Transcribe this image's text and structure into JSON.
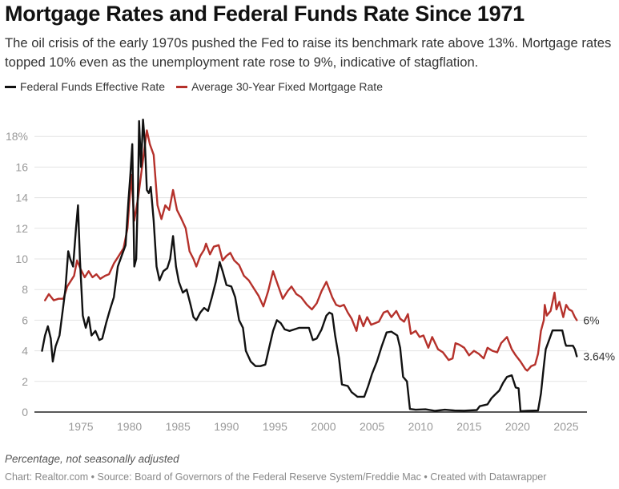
{
  "header": {
    "title": "Mortgage Rates and Federal Funds Rate Since 1971",
    "subtitle": "The oil crisis of the early 1970s pushed the Fed to raise its benchmark rate above 13%. Mortgage rates topped 10% even as the unemployment rate rose to 9%, indicative of stagflation."
  },
  "legend": [
    {
      "label": "Federal Funds Effective Rate",
      "color": "#111111"
    },
    {
      "label": "Average 30-Year Fixed Mortgage Rate",
      "color": "#b5312b"
    }
  ],
  "footer": {
    "notes": "Percentage, not seasonally adjusted",
    "byline": "Chart: Realtor.com • Source: Board of Governors of the Federal Reserve System/Freddie Mac • Created with Datawrapper"
  },
  "chart_data": {
    "type": "line",
    "title": "Mortgage Rates and Federal Funds Rate Since 1971",
    "xlabel": "",
    "ylabel": "Percentage",
    "xlim": [
      1971,
      2026.3
    ],
    "ylim": [
      0,
      19
    ],
    "grid": true,
    "legend_position": "top-left",
    "y_ticks": [
      0,
      2,
      4,
      6,
      8,
      10,
      12,
      14,
      16,
      18
    ],
    "y_tick_labels": [
      "0",
      "2",
      "4",
      "6",
      "8",
      "10",
      "12",
      "14",
      "16",
      "18%"
    ],
    "x_ticks": [
      1975,
      1980,
      1985,
      1990,
      1995,
      2000,
      2005,
      2010,
      2015,
      2020,
      2025
    ],
    "x_tick_labels": [
      "1975",
      "1980",
      "1985",
      "1990",
      "1995",
      "2000",
      "2005",
      "2010",
      "2015",
      "2020",
      "2025"
    ],
    "series": [
      {
        "name": "Federal Funds Effective Rate",
        "color": "#111111",
        "end_label": "3.64%",
        "points": [
          [
            1971.0,
            4.0
          ],
          [
            1971.3,
            5.0
          ],
          [
            1971.6,
            5.6
          ],
          [
            1971.9,
            4.8
          ],
          [
            1972.1,
            3.3
          ],
          [
            1972.4,
            4.3
          ],
          [
            1972.8,
            5.0
          ],
          [
            1973.1,
            6.5
          ],
          [
            1973.4,
            8.0
          ],
          [
            1973.7,
            10.5
          ],
          [
            1973.9,
            10.0
          ],
          [
            1974.2,
            9.5
          ],
          [
            1974.5,
            12.0
          ],
          [
            1974.7,
            13.5
          ],
          [
            1974.9,
            10.0
          ],
          [
            1975.2,
            6.3
          ],
          [
            1975.5,
            5.5
          ],
          [
            1975.8,
            6.2
          ],
          [
            1976.1,
            5.0
          ],
          [
            1976.5,
            5.3
          ],
          [
            1976.9,
            4.7
          ],
          [
            1977.2,
            4.8
          ],
          [
            1977.6,
            5.8
          ],
          [
            1978.0,
            6.7
          ],
          [
            1978.4,
            7.5
          ],
          [
            1978.8,
            9.5
          ],
          [
            1979.2,
            10.2
          ],
          [
            1979.6,
            10.9
          ],
          [
            1979.9,
            13.8
          ],
          [
            1980.1,
            15.5
          ],
          [
            1980.3,
            17.5
          ],
          [
            1980.5,
            9.5
          ],
          [
            1980.7,
            10.0
          ],
          [
            1980.9,
            15.0
          ],
          [
            1981.0,
            19.0
          ],
          [
            1981.2,
            16.0
          ],
          [
            1981.4,
            19.1
          ],
          [
            1981.6,
            17.5
          ],
          [
            1981.8,
            14.5
          ],
          [
            1982.0,
            14.3
          ],
          [
            1982.2,
            14.7
          ],
          [
            1982.5,
            12.5
          ],
          [
            1982.8,
            9.5
          ],
          [
            1983.1,
            8.6
          ],
          [
            1983.5,
            9.2
          ],
          [
            1983.9,
            9.4
          ],
          [
            1984.2,
            10.0
          ],
          [
            1984.5,
            11.5
          ],
          [
            1984.8,
            9.5
          ],
          [
            1985.1,
            8.5
          ],
          [
            1985.5,
            7.8
          ],
          [
            1985.9,
            8.0
          ],
          [
            1986.3,
            7.0
          ],
          [
            1986.6,
            6.2
          ],
          [
            1986.9,
            6.0
          ],
          [
            1987.3,
            6.5
          ],
          [
            1987.7,
            6.8
          ],
          [
            1988.1,
            6.6
          ],
          [
            1988.5,
            7.5
          ],
          [
            1988.9,
            8.5
          ],
          [
            1989.3,
            9.8
          ],
          [
            1989.6,
            9.2
          ],
          [
            1990.0,
            8.3
          ],
          [
            1990.5,
            8.2
          ],
          [
            1990.9,
            7.5
          ],
          [
            1991.3,
            6.0
          ],
          [
            1991.7,
            5.5
          ],
          [
            1992.0,
            4.0
          ],
          [
            1992.5,
            3.3
          ],
          [
            1993.0,
            3.0
          ],
          [
            1993.5,
            3.0
          ],
          [
            1994.0,
            3.1
          ],
          [
            1994.4,
            4.2
          ],
          [
            1994.8,
            5.3
          ],
          [
            1995.2,
            6.0
          ],
          [
            1995.6,
            5.8
          ],
          [
            1996.0,
            5.4
          ],
          [
            1996.5,
            5.3
          ],
          [
            1997.0,
            5.4
          ],
          [
            1997.5,
            5.5
          ],
          [
            1998.0,
            5.5
          ],
          [
            1998.5,
            5.5
          ],
          [
            1998.9,
            4.7
          ],
          [
            1999.3,
            4.8
          ],
          [
            1999.8,
            5.4
          ],
          [
            2000.3,
            6.3
          ],
          [
            2000.6,
            6.5
          ],
          [
            2000.9,
            6.4
          ],
          [
            2001.2,
            5.0
          ],
          [
            2001.6,
            3.5
          ],
          [
            2001.9,
            1.8
          ],
          [
            2002.5,
            1.7
          ],
          [
            2002.9,
            1.3
          ],
          [
            2003.5,
            1.0
          ],
          [
            2004.2,
            1.0
          ],
          [
            2004.6,
            1.7
          ],
          [
            2005.0,
            2.5
          ],
          [
            2005.5,
            3.3
          ],
          [
            2006.0,
            4.3
          ],
          [
            2006.5,
            5.2
          ],
          [
            2007.0,
            5.25
          ],
          [
            2007.6,
            5.0
          ],
          [
            2007.9,
            4.2
          ],
          [
            2008.2,
            2.3
          ],
          [
            2008.6,
            2.0
          ],
          [
            2008.9,
            0.2
          ],
          [
            2009.5,
            0.15
          ],
          [
            2010.5,
            0.18
          ],
          [
            2011.5,
            0.08
          ],
          [
            2012.5,
            0.15
          ],
          [
            2013.5,
            0.1
          ],
          [
            2014.5,
            0.09
          ],
          [
            2015.8,
            0.13
          ],
          [
            2016.1,
            0.38
          ],
          [
            2016.9,
            0.5
          ],
          [
            2017.3,
            0.9
          ],
          [
            2017.7,
            1.15
          ],
          [
            2018.1,
            1.4
          ],
          [
            2018.5,
            1.9
          ],
          [
            2018.9,
            2.3
          ],
          [
            2019.4,
            2.4
          ],
          [
            2019.8,
            1.6
          ],
          [
            2020.1,
            1.55
          ],
          [
            2020.3,
            0.05
          ],
          [
            2021.0,
            0.08
          ],
          [
            2022.1,
            0.1
          ],
          [
            2022.4,
            1.2
          ],
          [
            2022.7,
            3.0
          ],
          [
            2022.9,
            4.1
          ],
          [
            2023.3,
            4.8
          ],
          [
            2023.6,
            5.33
          ],
          [
            2024.6,
            5.33
          ],
          [
            2024.9,
            4.5
          ],
          [
            2025.0,
            4.33
          ],
          [
            2025.7,
            4.33
          ],
          [
            2025.9,
            4.1
          ],
          [
            2026.1,
            3.64
          ]
        ]
      },
      {
        "name": "Average 30-Year Fixed Mortgage Rate",
        "color": "#b5312b",
        "end_label": "6%",
        "points": [
          [
            1971.3,
            7.3
          ],
          [
            1971.7,
            7.7
          ],
          [
            1972.2,
            7.3
          ],
          [
            1972.7,
            7.4
          ],
          [
            1973.2,
            7.4
          ],
          [
            1973.6,
            8.2
          ],
          [
            1974.0,
            8.6
          ],
          [
            1974.3,
            8.9
          ],
          [
            1974.6,
            9.9
          ],
          [
            1975.0,
            9.3
          ],
          [
            1975.4,
            8.8
          ],
          [
            1975.8,
            9.2
          ],
          [
            1976.2,
            8.8
          ],
          [
            1976.6,
            9.0
          ],
          [
            1977.0,
            8.7
          ],
          [
            1977.5,
            8.9
          ],
          [
            1977.9,
            9.0
          ],
          [
            1978.4,
            9.7
          ],
          [
            1978.9,
            10.2
          ],
          [
            1979.4,
            10.7
          ],
          [
            1979.8,
            12.0
          ],
          [
            1980.2,
            15.5
          ],
          [
            1980.5,
            12.5
          ],
          [
            1980.9,
            14.0
          ],
          [
            1981.3,
            16.0
          ],
          [
            1981.8,
            18.4
          ],
          [
            1982.1,
            17.5
          ],
          [
            1982.5,
            16.8
          ],
          [
            1982.9,
            13.5
          ],
          [
            1983.3,
            12.6
          ],
          [
            1983.7,
            13.5
          ],
          [
            1984.1,
            13.2
          ],
          [
            1984.5,
            14.5
          ],
          [
            1984.9,
            13.2
          ],
          [
            1985.3,
            12.7
          ],
          [
            1985.8,
            12.0
          ],
          [
            1986.2,
            10.5
          ],
          [
            1986.6,
            10.0
          ],
          [
            1986.9,
            9.5
          ],
          [
            1987.3,
            10.2
          ],
          [
            1987.7,
            10.6
          ],
          [
            1987.9,
            11.0
          ],
          [
            1988.3,
            10.3
          ],
          [
            1988.7,
            10.8
          ],
          [
            1989.2,
            10.9
          ],
          [
            1989.6,
            9.9
          ],
          [
            1990.0,
            10.2
          ],
          [
            1990.4,
            10.4
          ],
          [
            1990.8,
            9.9
          ],
          [
            1991.3,
            9.6
          ],
          [
            1991.8,
            8.9
          ],
          [
            1992.3,
            8.6
          ],
          [
            1992.8,
            8.1
          ],
          [
            1993.3,
            7.6
          ],
          [
            1993.8,
            6.9
          ],
          [
            1994.3,
            7.9
          ],
          [
            1994.8,
            9.2
          ],
          [
            1995.3,
            8.3
          ],
          [
            1995.8,
            7.4
          ],
          [
            1996.3,
            7.9
          ],
          [
            1996.7,
            8.2
          ],
          [
            1997.2,
            7.7
          ],
          [
            1997.7,
            7.5
          ],
          [
            1998.3,
            7.0
          ],
          [
            1998.8,
            6.7
          ],
          [
            1999.3,
            7.1
          ],
          [
            1999.8,
            7.9
          ],
          [
            2000.3,
            8.5
          ],
          [
            2000.6,
            8.0
          ],
          [
            2000.9,
            7.5
          ],
          [
            2001.3,
            7.0
          ],
          [
            2001.7,
            6.9
          ],
          [
            2002.1,
            7.0
          ],
          [
            2002.5,
            6.5
          ],
          [
            2002.9,
            6.1
          ],
          [
            2003.4,
            5.3
          ],
          [
            2003.7,
            6.3
          ],
          [
            2004.1,
            5.6
          ],
          [
            2004.5,
            6.2
          ],
          [
            2004.9,
            5.7
          ],
          [
            2005.3,
            5.8
          ],
          [
            2005.7,
            5.9
          ],
          [
            2006.2,
            6.5
          ],
          [
            2006.6,
            6.6
          ],
          [
            2007.0,
            6.2
          ],
          [
            2007.5,
            6.6
          ],
          [
            2007.9,
            6.1
          ],
          [
            2008.3,
            5.9
          ],
          [
            2008.7,
            6.4
          ],
          [
            2009.0,
            5.1
          ],
          [
            2009.5,
            5.3
          ],
          [
            2009.9,
            4.9
          ],
          [
            2010.3,
            5.0
          ],
          [
            2010.8,
            4.2
          ],
          [
            2011.2,
            4.9
          ],
          [
            2011.8,
            4.1
          ],
          [
            2012.3,
            3.9
          ],
          [
            2012.9,
            3.4
          ],
          [
            2013.3,
            3.5
          ],
          [
            2013.6,
            4.5
          ],
          [
            2014.0,
            4.4
          ],
          [
            2014.5,
            4.2
          ],
          [
            2015.0,
            3.7
          ],
          [
            2015.5,
            4.0
          ],
          [
            2016.0,
            3.8
          ],
          [
            2016.5,
            3.5
          ],
          [
            2016.9,
            4.2
          ],
          [
            2017.4,
            4.0
          ],
          [
            2017.9,
            3.9
          ],
          [
            2018.3,
            4.5
          ],
          [
            2018.9,
            4.9
          ],
          [
            2019.4,
            4.1
          ],
          [
            2019.8,
            3.7
          ],
          [
            2020.3,
            3.3
          ],
          [
            2020.8,
            2.8
          ],
          [
            2021.0,
            2.7
          ],
          [
            2021.4,
            3.0
          ],
          [
            2021.8,
            3.1
          ],
          [
            2022.1,
            3.8
          ],
          [
            2022.4,
            5.3
          ],
          [
            2022.7,
            6.0
          ],
          [
            2022.8,
            7.0
          ],
          [
            2023.0,
            6.3
          ],
          [
            2023.4,
            6.6
          ],
          [
            2023.8,
            7.8
          ],
          [
            2024.0,
            6.7
          ],
          [
            2024.3,
            7.2
          ],
          [
            2024.7,
            6.2
          ],
          [
            2025.0,
            7.0
          ],
          [
            2025.3,
            6.7
          ],
          [
            2025.6,
            6.6
          ],
          [
            2025.9,
            6.2
          ],
          [
            2026.1,
            6.0
          ]
        ]
      }
    ]
  }
}
